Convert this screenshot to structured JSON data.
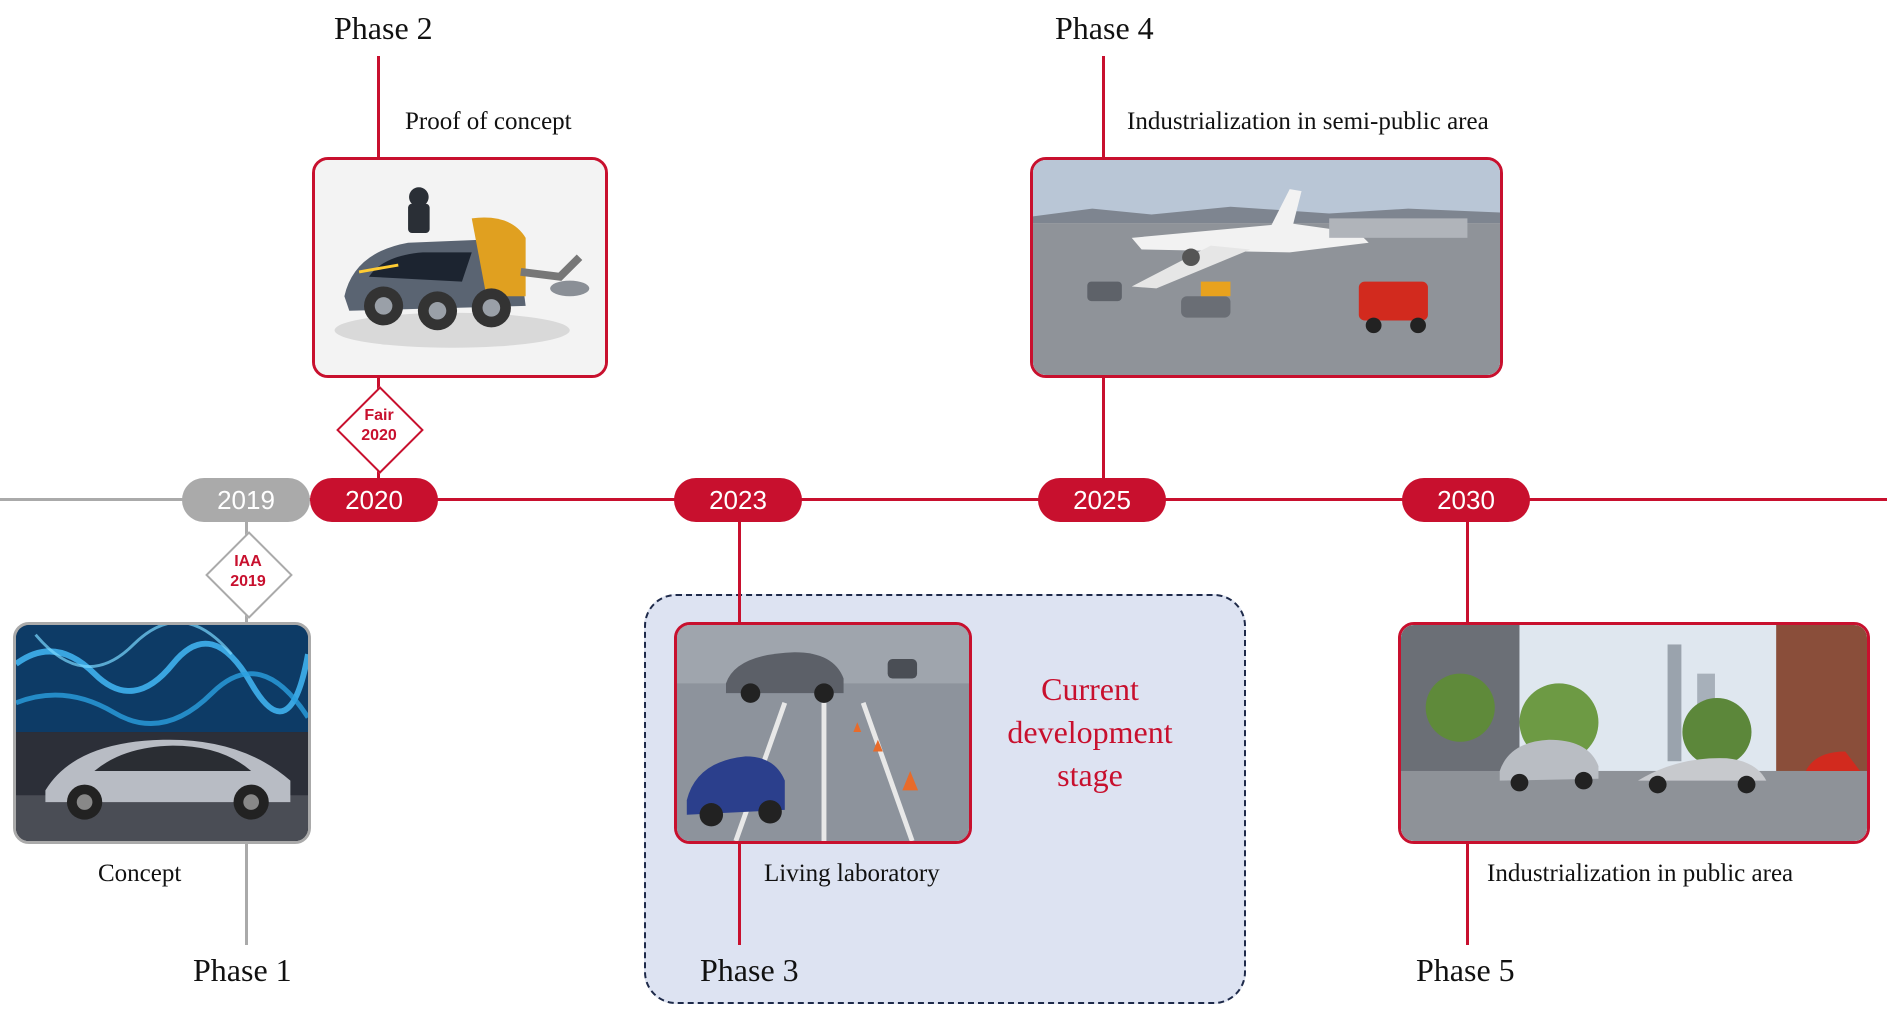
{
  "colors": {
    "accent": "#c8102e",
    "past": "#aaaaaa",
    "highlight_bg": "#dde3f2",
    "highlight_border": "#1e2a4a"
  },
  "timeline": {
    "years": [
      {
        "label": "2019",
        "state": "past"
      },
      {
        "label": "2020",
        "state": "active"
      },
      {
        "label": "2023",
        "state": "active"
      },
      {
        "label": "2025",
        "state": "active"
      },
      {
        "label": "2030",
        "state": "active"
      }
    ]
  },
  "phases": [
    {
      "label": "Phase 1",
      "caption": "Concept",
      "image": "concept-car-exhibition-photo"
    },
    {
      "label": "Phase 2",
      "caption": "Proof of concept",
      "image": "robot-vehicle-render"
    },
    {
      "label": "Phase 3",
      "caption": "Living laboratory",
      "image": "test-track-robots-photo"
    },
    {
      "label": "Phase 4",
      "caption": "Industrialization in semi-public area",
      "image": "airport-apron-photo"
    },
    {
      "label": "Phase 5",
      "caption": "Industrialization in public area",
      "image": "city-street-photo"
    }
  ],
  "events": [
    {
      "line1": "IAA",
      "line2": "2019"
    },
    {
      "line1": "Fair",
      "line2": "2020"
    }
  ],
  "highlight": {
    "text_lines": [
      "Current",
      "development",
      "stage"
    ]
  }
}
